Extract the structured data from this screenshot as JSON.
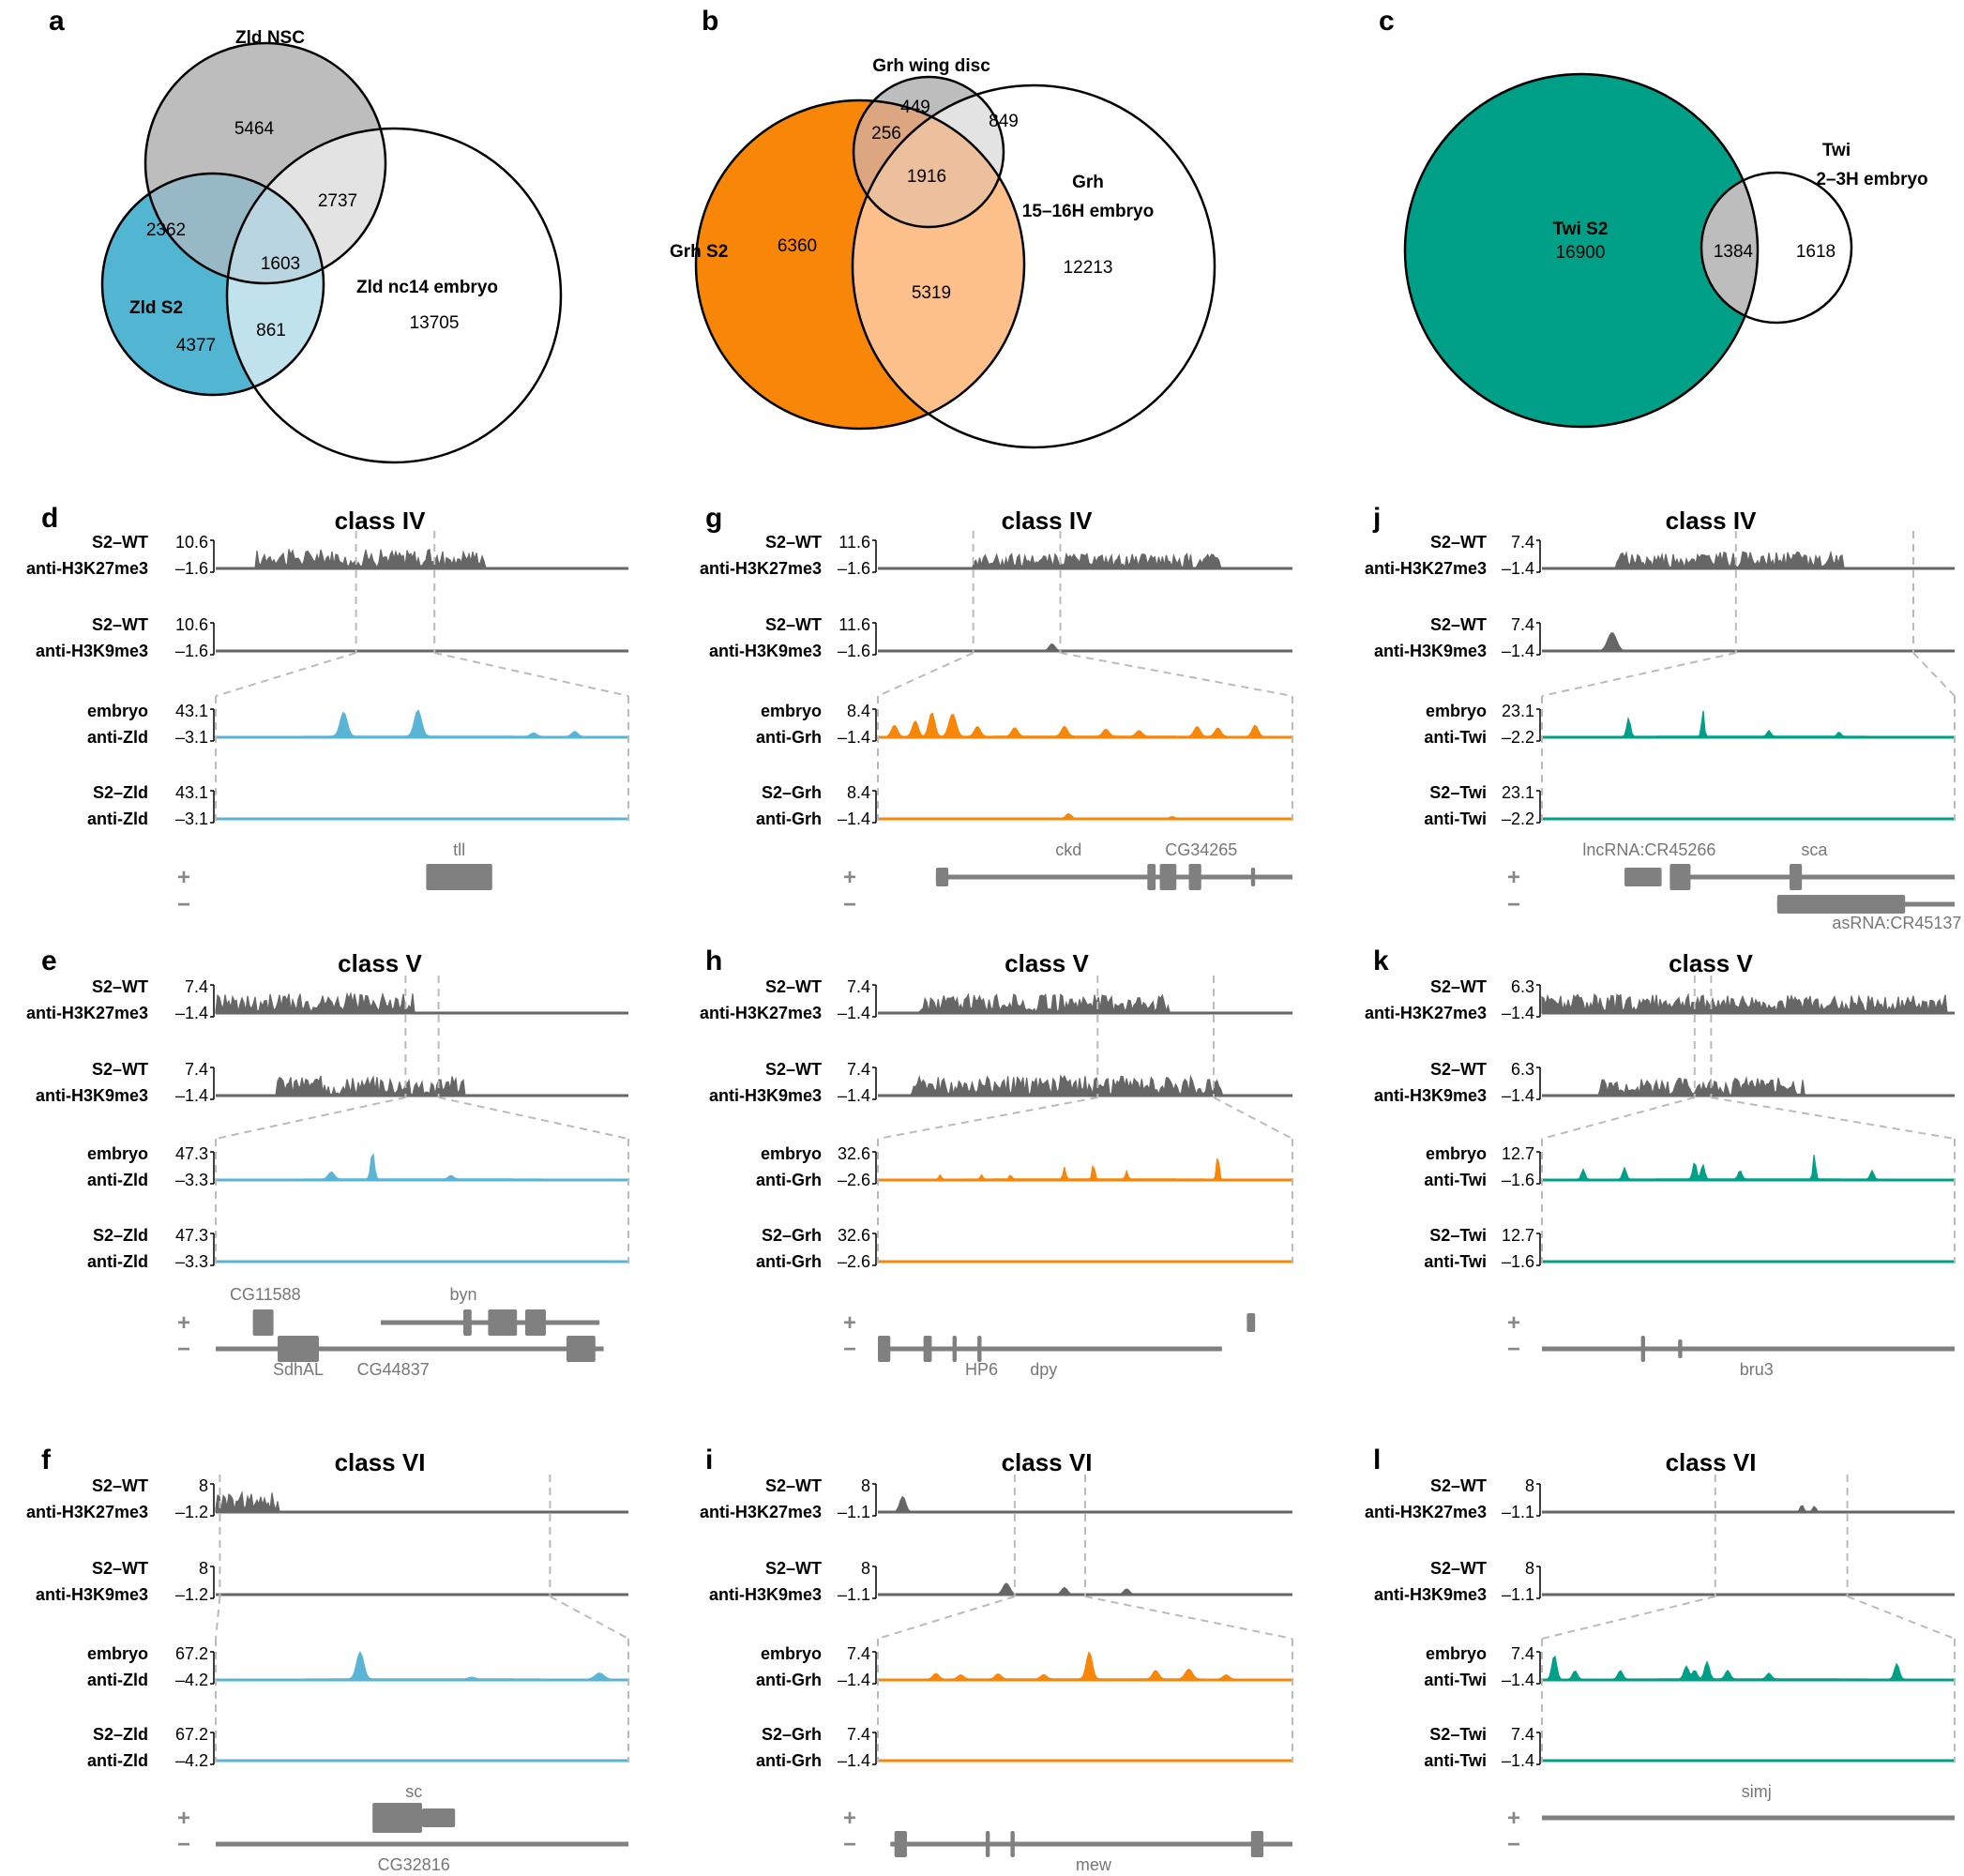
{
  "venns": [
    {
      "panel": "a",
      "circles": [
        {
          "label": [
            "Zld NSC"
          ],
          "color": "#bdbdbd",
          "opacity": 1
        },
        {
          "label": [
            "Zld S2"
          ],
          "color": "#52b6d2",
          "opacity": 1
        },
        {
          "label": [
            "Zld nc14 embryo"
          ],
          "color": "#ffffff",
          "opacity": 0
        }
      ],
      "regions": [
        {
          "value": "5464",
          "fill": "#bdbdbd"
        },
        {
          "value": "4377",
          "fill": "#52b6d2"
        },
        {
          "value": "13705",
          "fill": "#ffffff"
        },
        {
          "value": "2362",
          "fill": "#97b9c5"
        },
        {
          "value": "2737",
          "fill": "#e3e3e3"
        },
        {
          "value": "861",
          "fill": "#bfe2ed"
        },
        {
          "value": "1603",
          "fill": "#b9d5df"
        }
      ]
    },
    {
      "panel": "b",
      "circles": [
        {
          "label": [
            "Grh wing disc"
          ],
          "color": "#bdbdbd",
          "opacity": 1
        },
        {
          "label": [
            "Grh S2"
          ],
          "color": "#f78609",
          "opacity": 1
        },
        {
          "label": [
            "Grh",
            "15–16H embryo"
          ],
          "color": "#ffffff",
          "opacity": 0
        }
      ],
      "regions": [
        {
          "value": "449",
          "fill": "#bdbdbd"
        },
        {
          "value": "6360",
          "fill": "#f78609"
        },
        {
          "value": "12213",
          "fill": "#ffffff"
        },
        {
          "value": "256",
          "fill": "#dba680"
        },
        {
          "value": "849",
          "fill": "#e3e3e3"
        },
        {
          "value": "5319",
          "fill": "#fdc08b"
        },
        {
          "value": "1916",
          "fill": "#ecc09d"
        }
      ]
    },
    {
      "panel": "c",
      "circles": [
        {
          "label": [
            "Twi S2"
          ],
          "color": "#00a088",
          "opacity": 1
        },
        {
          "label": [
            "Twi",
            "2–3H embryo"
          ],
          "color": "#ffffff",
          "opacity": 0
        }
      ],
      "regions": [
        {
          "value": "16900",
          "fill": "#00a088"
        },
        {
          "value": "1384",
          "fill": "#bdbdbd"
        },
        {
          "value": "1618",
          "fill": "#ffffff"
        }
      ]
    }
  ],
  "browser_panels": [
    {
      "letter": "d",
      "class_title": "class IV",
      "color": "#5ab4d6",
      "tracks": [
        {
          "line1": "S2–WT",
          "line2": "anti-H3K27me3",
          "max": "10.6",
          "min": "–1.6"
        },
        {
          "line1": "S2–WT",
          "line2": "anti-H3K9me3",
          "max": "10.6",
          "min": "–1.6"
        },
        {
          "line1": "embryo",
          "line2": "anti-Zld",
          "max": "43.1",
          "min": "–3.1"
        },
        {
          "line1": "S2–Zld",
          "line2": "anti-Zld",
          "max": "43.1",
          "min": "–3.1"
        }
      ],
      "genes_plus": [
        "tll"
      ],
      "genes_minus": []
    },
    {
      "letter": "e",
      "class_title": "class V",
      "color": "#5ab4d6",
      "tracks": [
        {
          "line1": "S2–WT",
          "line2": "anti-H3K27me3",
          "max": "7.4",
          "min": "–1.4"
        },
        {
          "line1": "S2–WT",
          "line2": "anti-H3K9me3",
          "max": "7.4",
          "min": "–1.4"
        },
        {
          "line1": "embryo",
          "line2": "anti-Zld",
          "max": "47.3",
          "min": "–3.3"
        },
        {
          "line1": "S2–Zld",
          "line2": "anti-Zld",
          "max": "47.3",
          "min": "–3.3"
        }
      ],
      "genes_plus": [
        "CG11588",
        "byn"
      ],
      "genes_minus": [
        "SdhAL",
        "CG44837"
      ]
    },
    {
      "letter": "f",
      "class_title": "class VI",
      "color": "#5ab4d6",
      "tracks": [
        {
          "line1": "S2–WT",
          "line2": "anti-H3K27me3",
          "max": "8",
          "min": "–1.2"
        },
        {
          "line1": "S2–WT",
          "line2": "anti-H3K9me3",
          "max": "8",
          "min": "–1.2"
        },
        {
          "line1": "embryo",
          "line2": "anti-Zld",
          "max": "67.2",
          "min": "–4.2"
        },
        {
          "line1": "S2–Zld",
          "line2": "anti-Zld",
          "max": "67.2",
          "min": "–4.2"
        }
      ],
      "genes_plus": [
        "sc"
      ],
      "genes_minus": [
        "CG32816"
      ]
    },
    {
      "letter": "g",
      "class_title": "class IV",
      "color": "#f78609",
      "tracks": [
        {
          "line1": "S2–WT",
          "line2": "anti-H3K27me3",
          "max": "11.6",
          "min": "–1.6"
        },
        {
          "line1": "S2–WT",
          "line2": "anti-H3K9me3",
          "max": "11.6",
          "min": "–1.6"
        },
        {
          "line1": "embryo",
          "line2": "anti-Grh",
          "max": "8.4",
          "min": "–1.4"
        },
        {
          "line1": "S2–Grh",
          "line2": "anti-Grh",
          "max": "8.4",
          "min": "–1.4"
        }
      ],
      "genes_plus": [
        "ckd",
        "CG34265"
      ],
      "genes_minus": []
    },
    {
      "letter": "h",
      "class_title": "class V",
      "color": "#f78609",
      "tracks": [
        {
          "line1": "S2–WT",
          "line2": "anti-H3K27me3",
          "max": "7.4",
          "min": "–1.4"
        },
        {
          "line1": "S2–WT",
          "line2": "anti-H3K9me3",
          "max": "7.4",
          "min": "–1.4"
        },
        {
          "line1": "embryo",
          "line2": "anti-Grh",
          "max": "32.6",
          "min": "–2.6"
        },
        {
          "line1": "S2–Grh",
          "line2": "anti-Grh",
          "max": "32.6",
          "min": "–2.6"
        }
      ],
      "genes_plus": [],
      "genes_minus": [
        "HP6",
        "dpy"
      ]
    },
    {
      "letter": "i",
      "class_title": "class VI",
      "color": "#f78609",
      "tracks": [
        {
          "line1": "S2–WT",
          "line2": "anti-H3K27me3",
          "max": "8",
          "min": "–1.1"
        },
        {
          "line1": "S2–WT",
          "line2": "anti-H3K9me3",
          "max": "8",
          "min": "–1.1"
        },
        {
          "line1": "embryo",
          "line2": "anti-Grh",
          "max": "7.4",
          "min": "–1.4"
        },
        {
          "line1": "S2–Grh",
          "line2": "anti-Grh",
          "max": "7.4",
          "min": "–1.4"
        }
      ],
      "genes_plus": [],
      "genes_minus": [
        "mew"
      ]
    },
    {
      "letter": "j",
      "class_title": "class IV",
      "color": "#00a088",
      "tracks": [
        {
          "line1": "S2–WT",
          "line2": "anti-H3K27me3",
          "max": "7.4",
          "min": "–1.4"
        },
        {
          "line1": "S2–WT",
          "line2": "anti-H3K9me3",
          "max": "7.4",
          "min": "–1.4"
        },
        {
          "line1": "embryo",
          "line2": "anti-Twi",
          "max": "23.1",
          "min": "–2.2"
        },
        {
          "line1": "S2–Twi",
          "line2": "anti-Twi",
          "max": "23.1",
          "min": "–2.2"
        }
      ],
      "genes_plus": [
        "lncRNA:CR45266",
        "sca"
      ],
      "genes_minus": [
        "asRNA:CR45137"
      ]
    },
    {
      "letter": "k",
      "class_title": "class V",
      "color": "#00a088",
      "tracks": [
        {
          "line1": "S2–WT",
          "line2": "anti-H3K27me3",
          "max": "6.3",
          "min": "–1.4"
        },
        {
          "line1": "S2–WT",
          "line2": "anti-H3K9me3",
          "max": "6.3",
          "min": "–1.4"
        },
        {
          "line1": "embryo",
          "line2": "anti-Twi",
          "max": "12.7",
          "min": "–1.6"
        },
        {
          "line1": "S2–Twi",
          "line2": "anti-Twi",
          "max": "12.7",
          "min": "–1.6"
        }
      ],
      "genes_plus": [],
      "genes_minus": [
        "bru3"
      ]
    },
    {
      "letter": "l",
      "class_title": "class VI",
      "color": "#00a088",
      "tracks": [
        {
          "line1": "S2–WT",
          "line2": "anti-H3K27me3",
          "max": "8",
          "min": "–1.1"
        },
        {
          "line1": "S2–WT",
          "line2": "anti-H3K9me3",
          "max": "8",
          "min": "–1.1"
        },
        {
          "line1": "embryo",
          "line2": "anti-Twi",
          "max": "7.4",
          "min": "–1.4"
        },
        {
          "line1": "S2–Twi",
          "line2": "anti-Twi",
          "max": "7.4",
          "min": "–1.4"
        }
      ],
      "genes_plus": [
        "simj"
      ],
      "genes_minus": []
    }
  ],
  "strand_symbols": {
    "plus": "+",
    "minus": "−"
  }
}
